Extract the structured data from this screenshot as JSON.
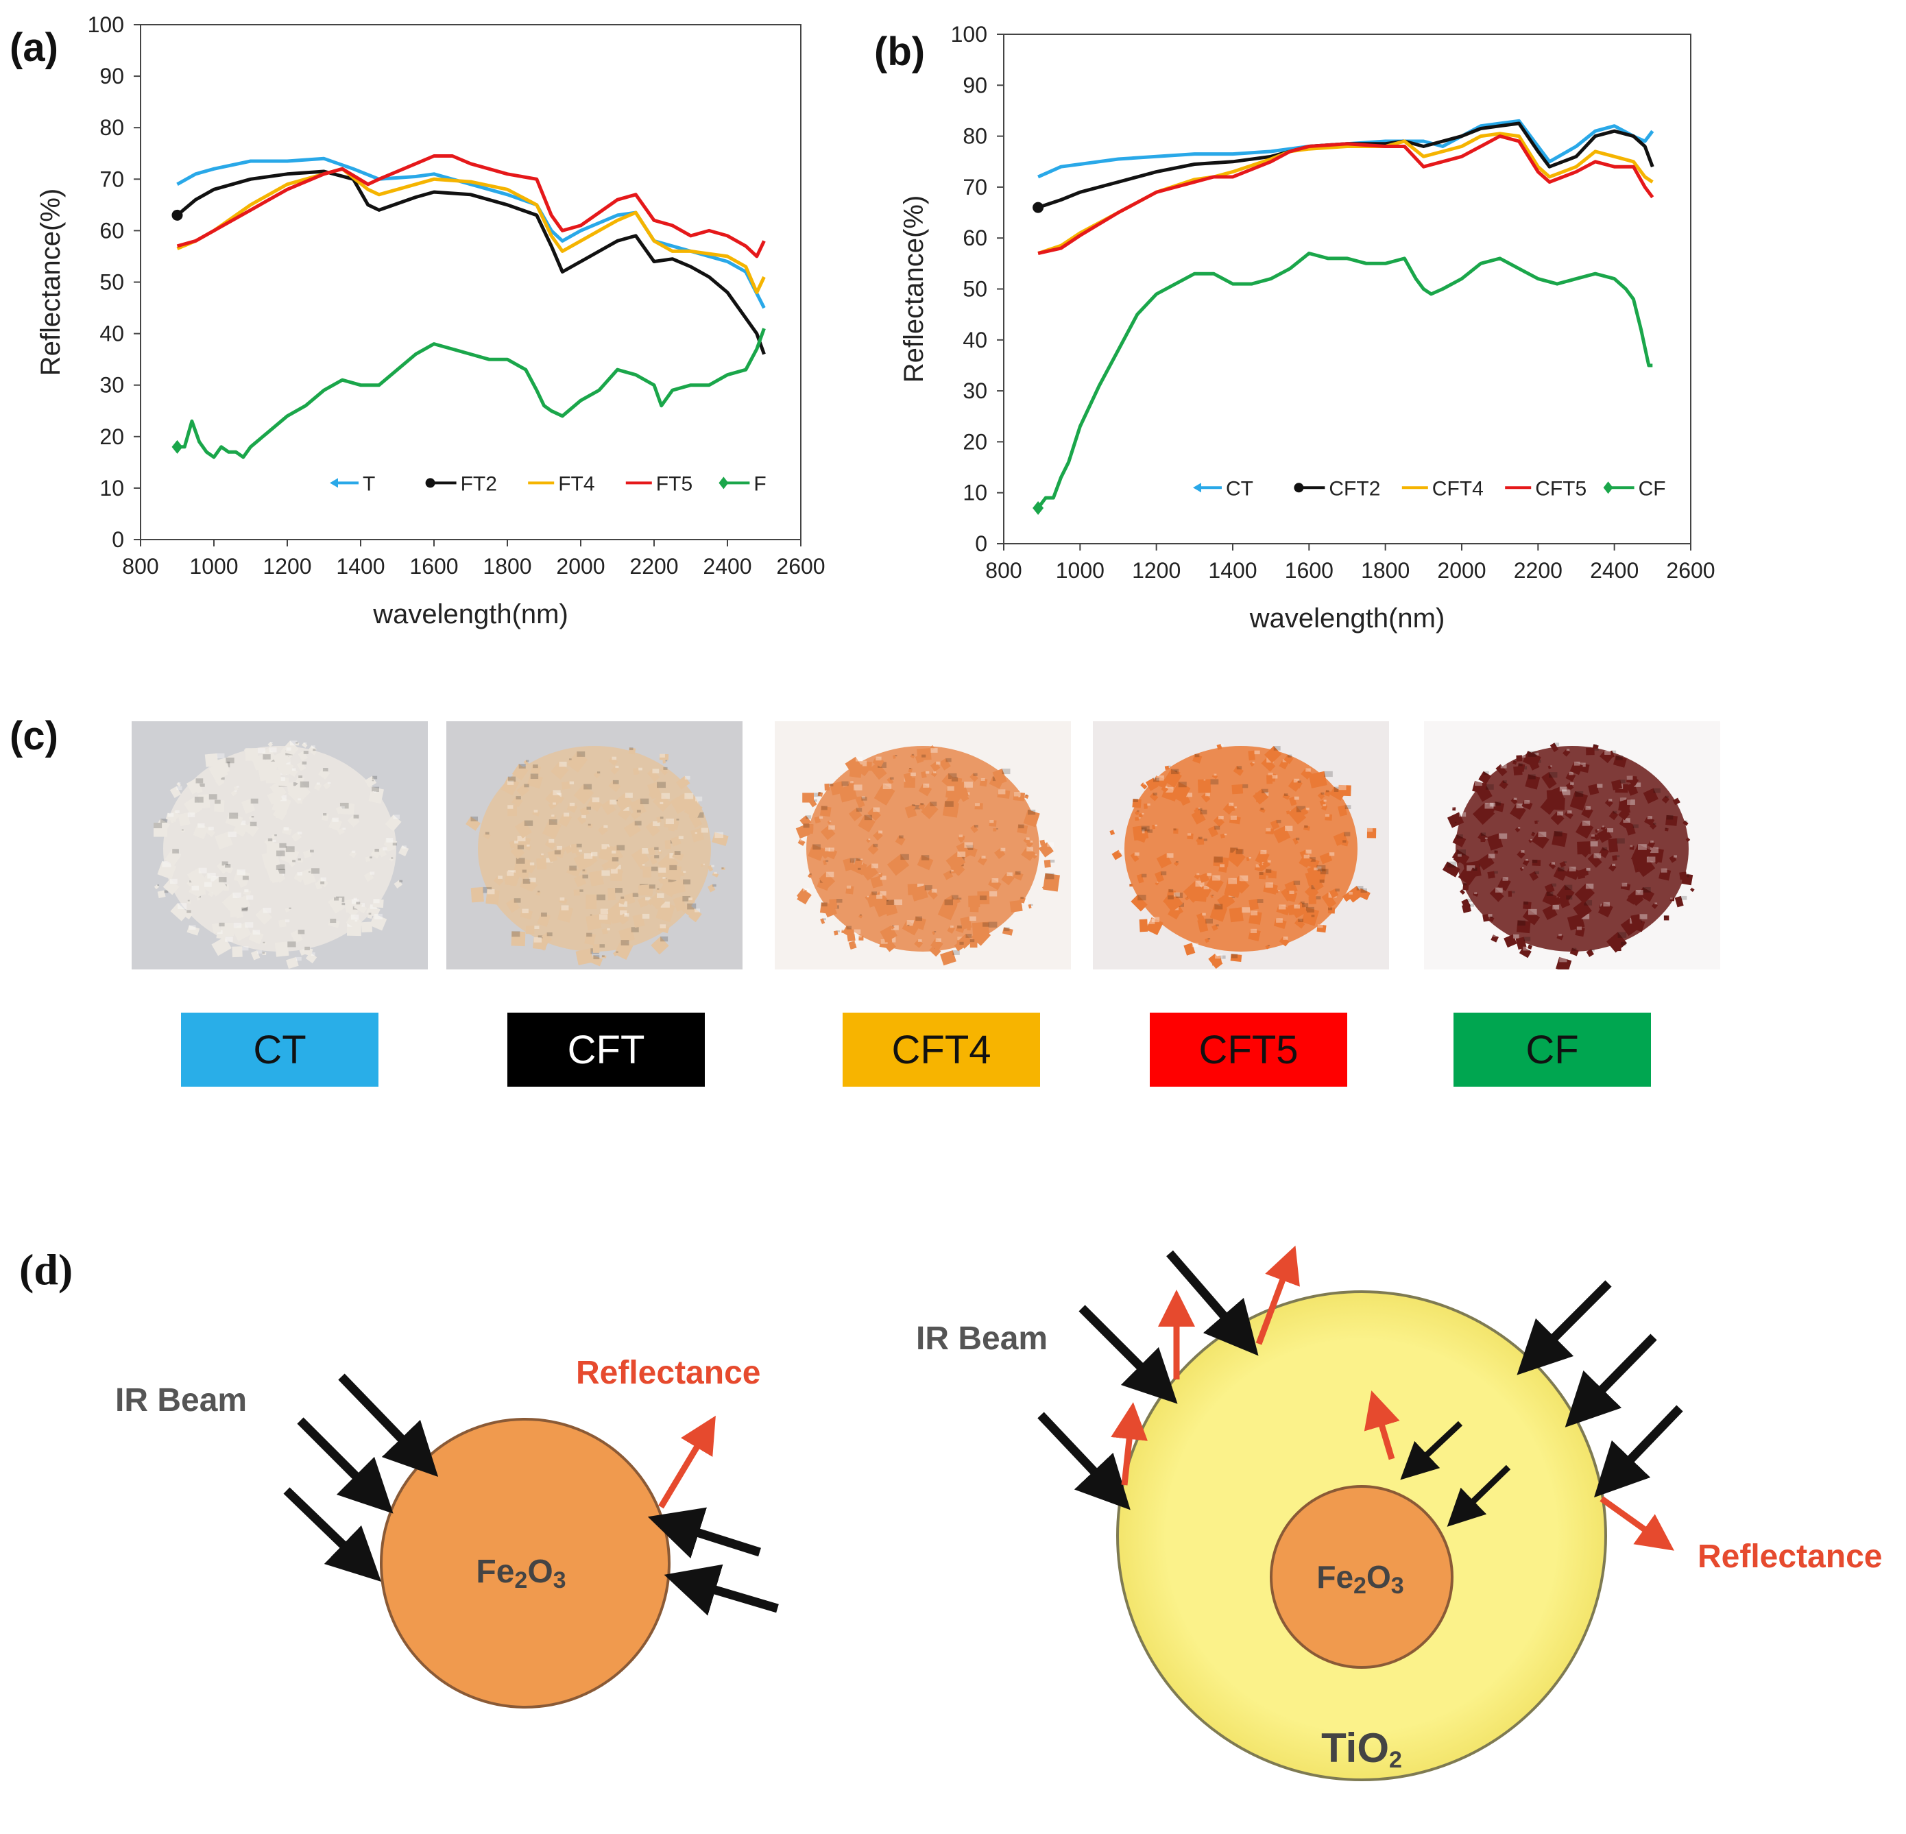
{
  "panels": {
    "a": "(a)",
    "b": "(b)",
    "c": "(c)",
    "d": "(d)"
  },
  "chart_data": [
    {
      "type": "line",
      "panel": "(a)",
      "xlabel": "wavelength(nm)",
      "ylabel": "Reflectance(%)",
      "xlim": [
        800,
        2600
      ],
      "ylim": [
        0,
        100
      ],
      "xticks": [
        800,
        1000,
        1200,
        1400,
        1600,
        1800,
        2000,
        2200,
        2400,
        2600
      ],
      "yticks": [
        0,
        10,
        20,
        30,
        40,
        50,
        60,
        70,
        80,
        90,
        100
      ],
      "grid": false,
      "legend_position": "bottom-right",
      "series": [
        {
          "name": "T",
          "color": "#29a8e8",
          "marker": "arrow",
          "x": [
            900,
            950,
            1000,
            1100,
            1200,
            1300,
            1380,
            1450,
            1550,
            1600,
            1700,
            1800,
            1880,
            1920,
            1950,
            2000,
            2100,
            2150,
            2200,
            2250,
            2300,
            2400,
            2450,
            2500
          ],
          "y": [
            69,
            71,
            72,
            73.5,
            73.5,
            74,
            72,
            70,
            70.5,
            71,
            69,
            67,
            65,
            60,
            58,
            60,
            63,
            63.5,
            58,
            57,
            56,
            54,
            52,
            45
          ]
        },
        {
          "name": "FT2",
          "color": "#111111",
          "marker": "circle",
          "x": [
            900,
            950,
            1000,
            1100,
            1200,
            1300,
            1380,
            1420,
            1450,
            1550,
            1600,
            1700,
            1800,
            1880,
            1920,
            1950,
            2000,
            2100,
            2150,
            2200,
            2250,
            2300,
            2350,
            2400,
            2450,
            2480,
            2500
          ],
          "y": [
            63,
            66,
            68,
            70,
            71,
            71.5,
            70,
            65,
            64,
            66.5,
            67.5,
            67,
            65,
            63,
            57,
            52,
            54,
            58,
            59,
            54,
            54.5,
            53,
            51,
            48,
            43,
            40,
            36
          ]
        },
        {
          "name": "FT4",
          "color": "#f5b400",
          "marker": "none",
          "x": [
            900,
            950,
            1000,
            1100,
            1200,
            1300,
            1350,
            1420,
            1450,
            1550,
            1600,
            1700,
            1800,
            1880,
            1920,
            1950,
            2000,
            2100,
            2150,
            2200,
            2250,
            2300,
            2400,
            2450,
            2480,
            2500
          ],
          "y": [
            56.5,
            58,
            60,
            65,
            69,
            71,
            72,
            68,
            67,
            69,
            70,
            69.5,
            68,
            65,
            59,
            56,
            58,
            62,
            63.5,
            58,
            56,
            56,
            55,
            53,
            48,
            51
          ]
        },
        {
          "name": "FT5",
          "color": "#e5181a",
          "marker": "none",
          "x": [
            900,
            950,
            1000,
            1100,
            1200,
            1300,
            1350,
            1420,
            1450,
            1550,
            1600,
            1650,
            1700,
            1800,
            1880,
            1920,
            1950,
            2000,
            2100,
            2150,
            2200,
            2250,
            2300,
            2350,
            2400,
            2450,
            2480,
            2500
          ],
          "y": [
            57,
            58,
            60,
            64,
            68,
            71,
            72,
            69,
            70,
            73,
            74.5,
            74.5,
            73,
            71,
            70,
            63,
            60,
            61,
            66,
            67,
            62,
            61,
            59,
            60,
            59,
            57,
            55,
            58
          ]
        },
        {
          "name": "F",
          "color": "#1aa64a",
          "marker": "diamond",
          "x": [
            900,
            920,
            940,
            960,
            980,
            1000,
            1020,
            1040,
            1060,
            1080,
            1100,
            1150,
            1200,
            1250,
            1300,
            1350,
            1400,
            1450,
            1500,
            1550,
            1600,
            1650,
            1700,
            1750,
            1800,
            1850,
            1880,
            1900,
            1920,
            1950,
            2000,
            2050,
            2100,
            2150,
            2200,
            2220,
            2250,
            2300,
            2350,
            2400,
            2450,
            2480,
            2500
          ],
          "y": [
            18,
            18,
            23,
            19,
            17,
            16,
            18,
            17,
            17,
            16,
            18,
            21,
            24,
            26,
            29,
            31,
            30,
            30,
            33,
            36,
            38,
            37,
            36,
            35,
            35,
            33,
            29,
            26,
            25,
            24,
            27,
            29,
            33,
            32,
            30,
            26,
            29,
            30,
            30,
            32,
            33,
            37,
            41
          ]
        }
      ]
    },
    {
      "type": "line",
      "panel": "(b)",
      "xlabel": "wavelength(nm)",
      "ylabel": "Reflectance(%)",
      "xlim": [
        800,
        2600
      ],
      "ylim": [
        0,
        100
      ],
      "xticks": [
        800,
        1000,
        1200,
        1400,
        1600,
        1800,
        2000,
        2200,
        2400,
        2600
      ],
      "yticks": [
        0,
        10,
        20,
        30,
        40,
        50,
        60,
        70,
        80,
        90,
        100
      ],
      "grid": false,
      "legend_position": "bottom-right",
      "series": [
        {
          "name": "CT",
          "color": "#29a8e8",
          "marker": "arrow",
          "x": [
            890,
            950,
            1000,
            1100,
            1200,
            1300,
            1400,
            1500,
            1600,
            1700,
            1800,
            1900,
            1950,
            2000,
            2050,
            2100,
            2150,
            2200,
            2230,
            2300,
            2350,
            2400,
            2450,
            2480,
            2500
          ],
          "y": [
            72,
            74,
            74.5,
            75.5,
            76,
            76.5,
            76.5,
            77,
            78,
            78.5,
            79,
            79,
            78,
            80,
            82,
            82.5,
            83,
            78,
            75,
            78,
            81,
            82,
            80,
            79,
            81
          ]
        },
        {
          "name": "CFT2",
          "color": "#111111",
          "marker": "circle",
          "x": [
            890,
            950,
            1000,
            1100,
            1200,
            1300,
            1400,
            1500,
            1550,
            1600,
            1700,
            1800,
            1850,
            1900,
            2000,
            2050,
            2100,
            2150,
            2200,
            2230,
            2300,
            2350,
            2400,
            2450,
            2480,
            2500
          ],
          "y": [
            66,
            67.5,
            69,
            71,
            73,
            74.5,
            75,
            76,
            77,
            78,
            78.5,
            78.5,
            79,
            78,
            80,
            81.5,
            82,
            82.5,
            77,
            74,
            76,
            80,
            81,
            80,
            78,
            74
          ]
        },
        {
          "name": "CFT4",
          "color": "#f5b400",
          "marker": "none",
          "x": [
            890,
            950,
            1000,
            1100,
            1200,
            1300,
            1350,
            1400,
            1500,
            1550,
            1600,
            1700,
            1800,
            1850,
            1900,
            2000,
            2050,
            2100,
            2150,
            2200,
            2230,
            2300,
            2350,
            2400,
            2450,
            2480,
            2500
          ],
          "y": [
            57,
            58.5,
            61,
            65,
            69,
            71.5,
            72,
            73,
            75.5,
            77,
            77.5,
            78,
            78,
            79,
            76,
            78,
            80,
            80.5,
            80,
            74,
            72,
            74,
            77,
            76,
            75,
            72,
            71
          ]
        },
        {
          "name": "CFT5",
          "color": "#e5181a",
          "marker": "none",
          "x": [
            890,
            950,
            1000,
            1100,
            1200,
            1300,
            1350,
            1400,
            1500,
            1550,
            1600,
            1700,
            1800,
            1850,
            1900,
            2000,
            2050,
            2100,
            2150,
            2200,
            2230,
            2300,
            2350,
            2400,
            2450,
            2480,
            2500
          ],
          "y": [
            57,
            58,
            60.5,
            65,
            69,
            71,
            72,
            72,
            75,
            77,
            78,
            78.5,
            78,
            78,
            74,
            76,
            78,
            80,
            79,
            73,
            71,
            73,
            75,
            74,
            74,
            70,
            68
          ]
        },
        {
          "name": "CF",
          "color": "#1aa64a",
          "marker": "diamond",
          "x": [
            890,
            910,
            930,
            950,
            970,
            1000,
            1050,
            1100,
            1150,
            1200,
            1250,
            1300,
            1350,
            1400,
            1450,
            1500,
            1550,
            1600,
            1650,
            1700,
            1750,
            1800,
            1850,
            1880,
            1900,
            1920,
            1950,
            2000,
            2050,
            2100,
            2150,
            2200,
            2250,
            2300,
            2350,
            2400,
            2430,
            2450,
            2470,
            2490,
            2500
          ],
          "y": [
            7,
            9,
            9,
            13,
            16,
            23,
            31,
            38,
            45,
            49,
            51,
            53,
            53,
            51,
            51,
            52,
            54,
            57,
            56,
            56,
            55,
            55,
            56,
            52,
            50,
            49,
            50,
            52,
            55,
            56,
            54,
            52,
            51,
            52,
            53,
            52,
            50,
            48,
            42,
            35,
            35
          ]
        }
      ]
    }
  ],
  "samples": [
    {
      "label": "CT",
      "color": "#29aee8",
      "powder": "#ece8e2"
    },
    {
      "label": "CFT",
      "color": "#000000",
      "powder": "#e4c4a0"
    },
    {
      "label": "CFT4",
      "color": "#f7b400",
      "powder": "#e88a4e"
    },
    {
      "label": "CFT5",
      "color": "#ff0000",
      "powder": "#ea7a36"
    },
    {
      "label": "CF",
      "color": "#00a650",
      "powder": "#6a1a18"
    }
  ],
  "diagram": {
    "left": {
      "beam_label": "IR Beam",
      "reflect_label": "Reflectance",
      "core_label": "Fe2O3"
    },
    "right": {
      "beam_label": "IR Beam",
      "reflect_label": "Reflectance",
      "core_label": "Fe2O3",
      "shell_label": "TiO2"
    },
    "colors": {
      "core": "#f09a4e",
      "shell": "#fbf28a",
      "arrow_in": "#111111",
      "arrow_out": "#e64a2e",
      "beam_text": "#555555"
    }
  }
}
